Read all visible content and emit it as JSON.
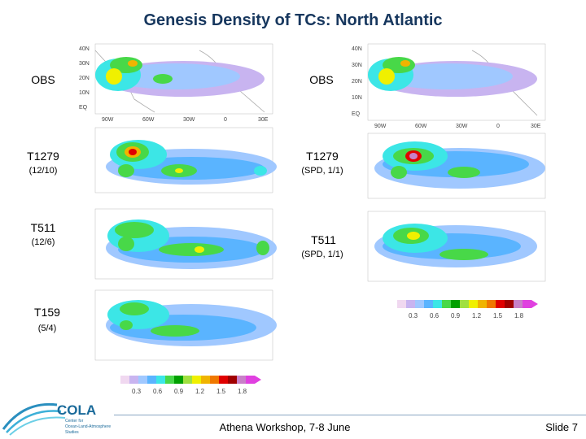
{
  "title": "Genesis Density of TCs: North Atlantic",
  "panels": [
    {
      "label": "OBS",
      "sub": ""
    },
    {
      "label": "OBS",
      "sub": ""
    },
    {
      "label": "T1279",
      "sub": "(12/10)"
    },
    {
      "label": "T1279",
      "sub": "(SPD, 1/1)"
    },
    {
      "label": "T511",
      "sub": "(12/6)"
    },
    {
      "label": "T511",
      "sub": "(SPD, 1/1)"
    },
    {
      "label": "T159",
      "sub": "(5/4)"
    }
  ],
  "map_axes": {
    "lat_ticks": [
      "40N",
      "30N",
      "20N",
      "10N",
      "EQ"
    ],
    "lon_ticks": [
      "90W",
      "60W",
      "30W",
      "0",
      "30E"
    ],
    "lat_ticks_alt": [
      "40N",
      "30N",
      "20N",
      "10N",
      "EQ"
    ],
    "lon_ticks_alt": [
      "90W",
      "60W",
      "30W",
      "0",
      "30E"
    ]
  },
  "colorbar": {
    "ticks": [
      "0.3",
      "0.6",
      "0.9",
      "1.2",
      "1.5",
      "1.8"
    ],
    "colors": [
      "#f0d8f0",
      "#c8b4f0",
      "#a0c8ff",
      "#5ab4ff",
      "#3ce6e6",
      "#48d848",
      "#00a000",
      "#a0e040",
      "#f0f000",
      "#f0b400",
      "#f07800",
      "#e00000",
      "#a00000",
      "#c880c8",
      "#e040e0"
    ]
  },
  "footer": {
    "org": "COLA",
    "org_sub1": "Center for",
    "org_sub2": "Ocean-Land-Atmosphere",
    "org_sub3": "Studies",
    "center": "Athena Workshop, 7-8 June",
    "slide": "Slide 7"
  }
}
